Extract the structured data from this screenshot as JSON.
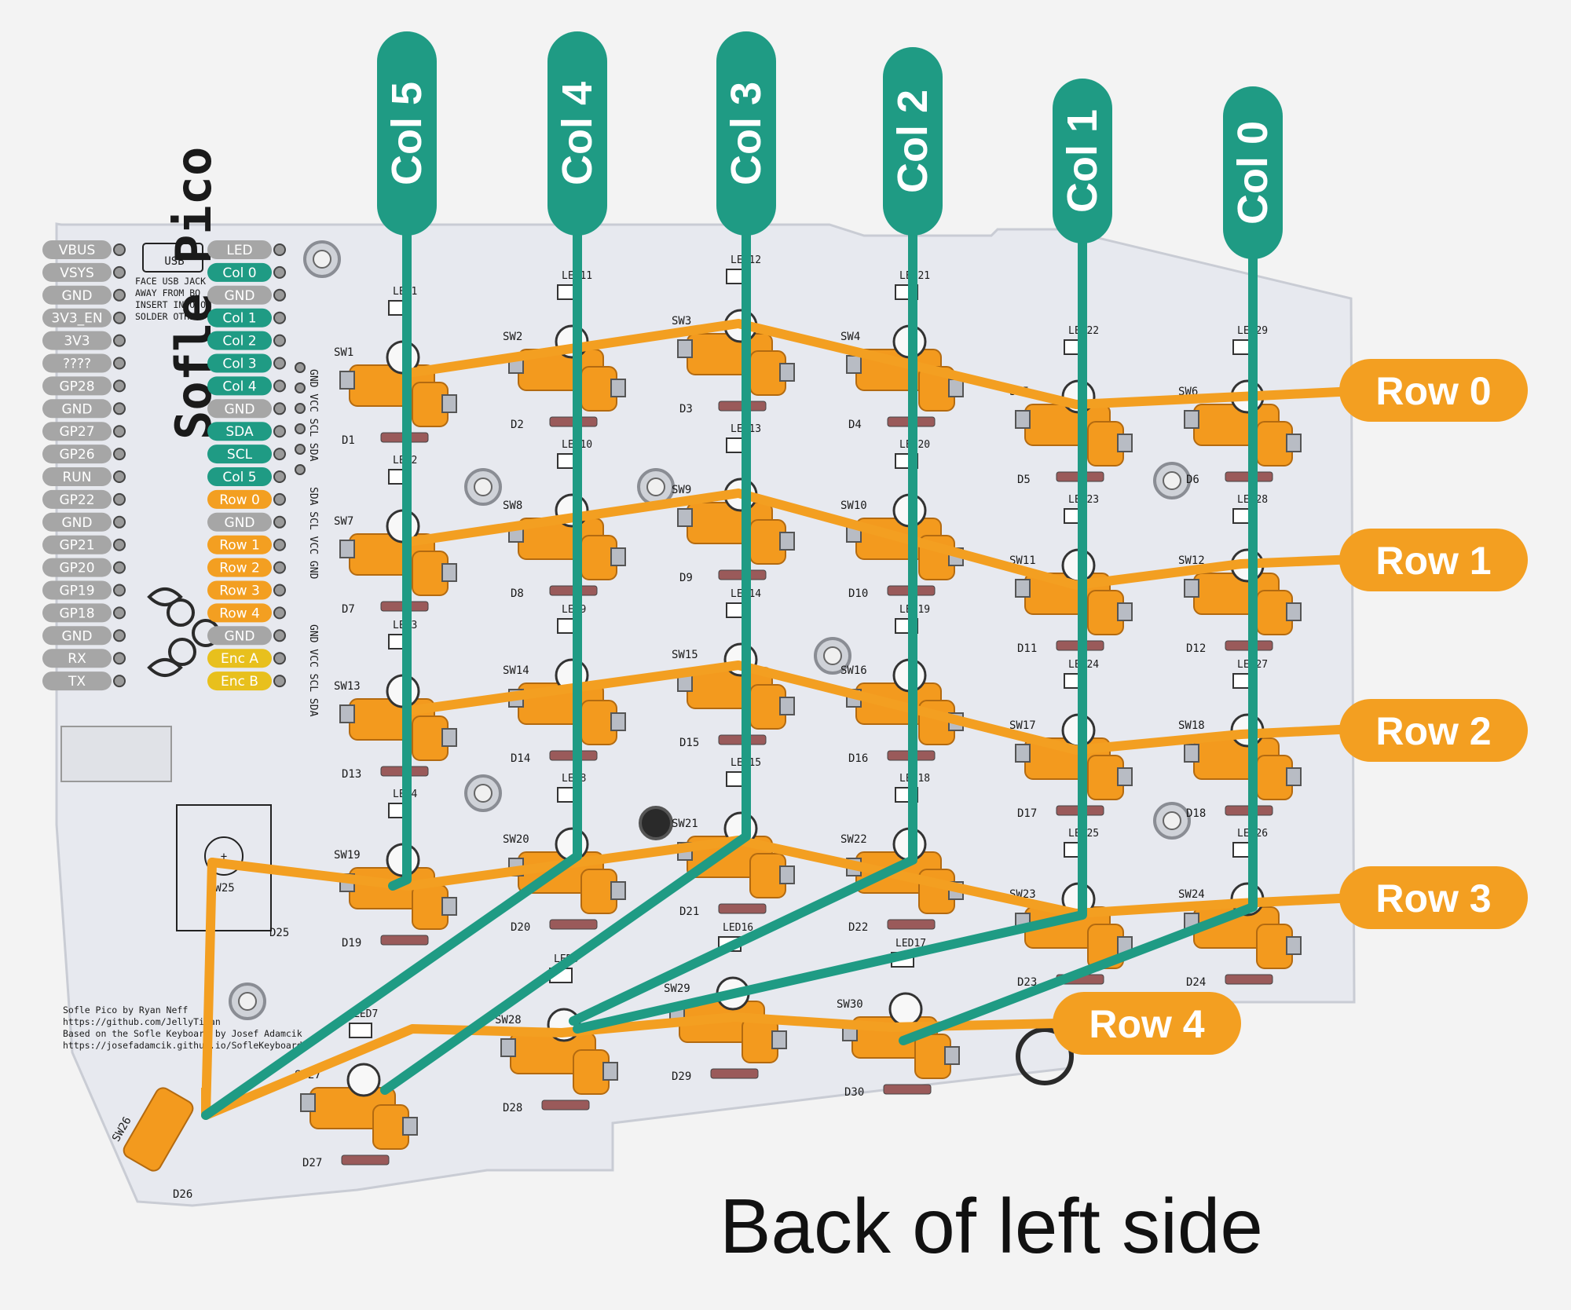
{
  "caption": "Back of left side",
  "colors": {
    "background": "#f3f3f3",
    "pcb": "#e6e8ee",
    "column_wire": "#1f9b84",
    "row_wire": "#f39f21",
    "pin_gray": "#a6a6a6",
    "pin_teal": "#1f9b84",
    "pin_orange": "#f39f21",
    "pin_yellow": "#e8c01d",
    "socket_orange": "#f39a1e"
  },
  "columns": [
    "Col 5",
    "Col 4",
    "Col 3",
    "Col 2",
    "Col 1",
    "Col 0"
  ],
  "rows": [
    "Row 0",
    "Row 1",
    "Row 2",
    "Row 3",
    "Row 4"
  ],
  "pico_left_pins": [
    "VBUS",
    "VSYS",
    "GND",
    "3V3_EN",
    "3V3",
    "????",
    "GP28",
    "GND",
    "GP27",
    "GP26",
    "RUN",
    "GP22",
    "GND",
    "GP21",
    "GP20",
    "GP19",
    "GP18",
    "GND",
    "RX",
    "TX"
  ],
  "pico_right_pins": [
    {
      "label": "LED",
      "kind": "gray"
    },
    {
      "label": "Col 0",
      "kind": "teal"
    },
    {
      "label": "GND",
      "kind": "gray"
    },
    {
      "label": "Col 1",
      "kind": "teal"
    },
    {
      "label": "Col 2",
      "kind": "teal"
    },
    {
      "label": "Col 3",
      "kind": "teal"
    },
    {
      "label": "Col 4",
      "kind": "teal"
    },
    {
      "label": "GND",
      "kind": "gray"
    },
    {
      "label": "SDA",
      "kind": "teal"
    },
    {
      "label": "SCL",
      "kind": "teal"
    },
    {
      "label": "Col 5",
      "kind": "teal"
    },
    {
      "label": "Row 0",
      "kind": "orange"
    },
    {
      "label": "GND",
      "kind": "gray"
    },
    {
      "label": "Row 1",
      "kind": "orange"
    },
    {
      "label": "Row 2",
      "kind": "orange"
    },
    {
      "label": "Row 3",
      "kind": "orange"
    },
    {
      "label": "Row 4",
      "kind": "orange"
    },
    {
      "label": "GND",
      "kind": "gray"
    },
    {
      "label": "Enc A",
      "kind": "yellow"
    },
    {
      "label": "Enc B",
      "kind": "yellow"
    }
  ],
  "silkscreen": {
    "usb": "USB",
    "face_note": [
      "FACE USB JACK",
      "AWAY FROM BO",
      "INSERT INTO OU",
      "SOLDER OTHER"
    ],
    "brand": "Sofle Pico",
    "credits": [
      "Sofle Pico by Ryan Neff",
      "https://github.com/JellyTitan",
      "Based on the Sofle Keyboard by Josef Adamcik",
      "https://josefadamcik.github.io/SofleKeyboard/"
    ],
    "oled_header_a": "GND VCC SCL SDA",
    "oled_header_b": "SDA SCL VCC GND",
    "oled_header_c": "GND VCC SCL SDA"
  },
  "switches": [
    {
      "sw": "SW1",
      "d": "D1",
      "led": "LED1"
    },
    {
      "sw": "SW2",
      "d": "D2",
      "led": "LED11"
    },
    {
      "sw": "SW3",
      "d": "D3",
      "led": "LED12"
    },
    {
      "sw": "SW4",
      "d": "D4",
      "led": "LED21"
    },
    {
      "sw": "SW5",
      "d": "D5",
      "led": "LED22"
    },
    {
      "sw": "SW6",
      "d": "D6",
      "led": "LED29"
    },
    {
      "sw": "SW7",
      "d": "D7",
      "led": "LED2"
    },
    {
      "sw": "SW8",
      "d": "D8",
      "led": "LED10"
    },
    {
      "sw": "SW9",
      "d": "D9",
      "led": "LED13"
    },
    {
      "sw": "SW10",
      "d": "D10",
      "led": "LED20"
    },
    {
      "sw": "SW11",
      "d": "D11",
      "led": "LED23"
    },
    {
      "sw": "SW12",
      "d": "D12",
      "led": "LED28"
    },
    {
      "sw": "SW13",
      "d": "D13",
      "led": "LED3"
    },
    {
      "sw": "SW14",
      "d": "D14",
      "led": "LED9"
    },
    {
      "sw": "SW15",
      "d": "D15",
      "led": "LED14"
    },
    {
      "sw": "SW16",
      "d": "D16",
      "led": "LED19"
    },
    {
      "sw": "SW17",
      "d": "D17",
      "led": "LED24"
    },
    {
      "sw": "SW18",
      "d": "D18",
      "led": "LED27"
    },
    {
      "sw": "SW19",
      "d": "D19",
      "led": "LED4"
    },
    {
      "sw": "SW20",
      "d": "D20",
      "led": "LED8"
    },
    {
      "sw": "SW21",
      "d": "D21",
      "led": "LED15"
    },
    {
      "sw": "SW22",
      "d": "D22",
      "led": "LED18"
    },
    {
      "sw": "SW23",
      "d": "D23",
      "led": "LED25"
    },
    {
      "sw": "SW24",
      "d": "D24",
      "led": "LED26"
    },
    {
      "sw": "SW27",
      "d": "D27",
      "led": "LED7"
    },
    {
      "sw": "SW28",
      "d": "D28",
      "led": "LED6"
    },
    {
      "sw": "SW29",
      "d": "D29",
      "led": "LED16"
    },
    {
      "sw": "SW30",
      "d": "D30",
      "led": "LED17"
    },
    {
      "sw": "SW26",
      "d": "D26",
      "led": ""
    },
    {
      "sw": "SW25",
      "d": "D25",
      "led": ""
    }
  ]
}
